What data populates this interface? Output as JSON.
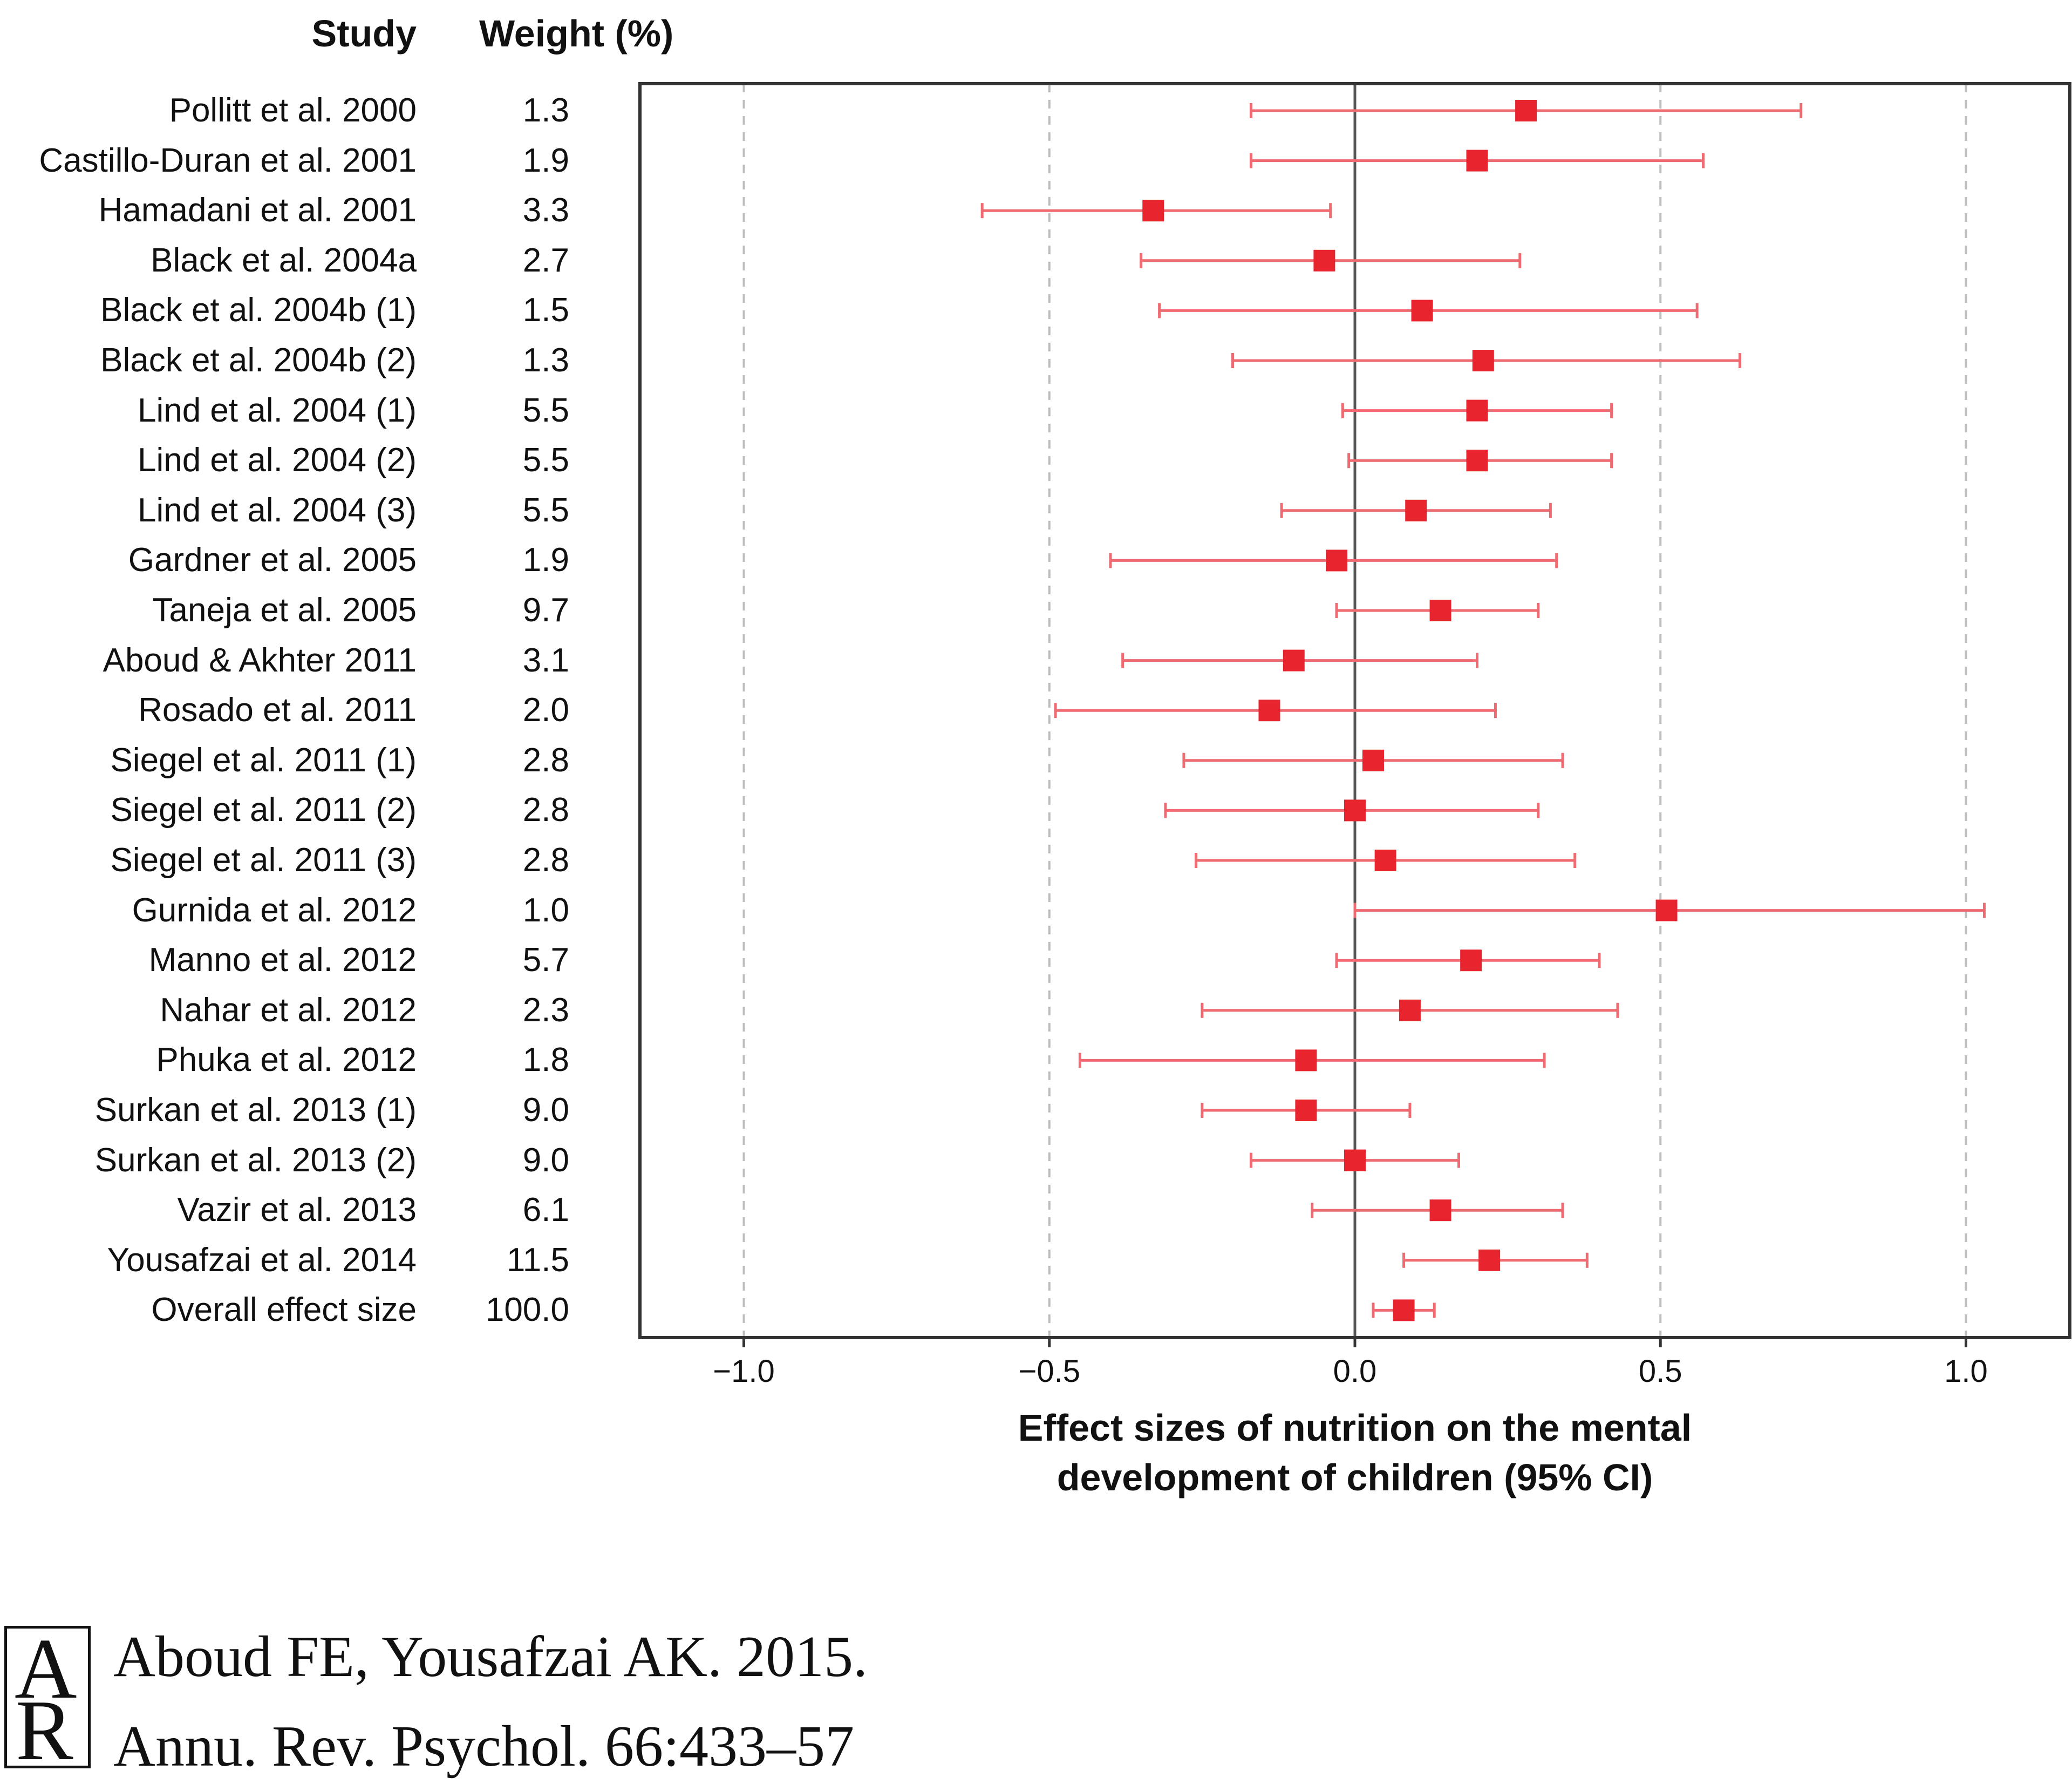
{
  "headers": {
    "study": "Study",
    "weight": "Weight (%)"
  },
  "chart_data": {
    "type": "forest",
    "xlabel_lines": [
      "Effect sizes of nutrition on the mental",
      "development of children (95% CI)"
    ],
    "xlim": [
      -1.17,
      1.17
    ],
    "xticks": [
      -1.0,
      -0.5,
      0.0,
      0.5,
      1.0
    ],
    "xtick_labels": [
      "−1.0",
      "−0.5",
      "0.0",
      "0.5",
      "1.0"
    ],
    "gridlines_at": [
      -1.0,
      -0.5,
      0.5,
      1.0
    ],
    "grid_style": "dashed",
    "reference_line": 0.0,
    "marker_color": "#e8242f",
    "whisker_color": "#ef6b72",
    "studies": [
      {
        "study": "Pollitt et al. 2000",
        "weight": "1.3",
        "effect": 0.28,
        "ci_low": -0.17,
        "ci_high": 0.73
      },
      {
        "study": "Castillo-Duran et al. 2001",
        "weight": "1.9",
        "effect": 0.2,
        "ci_low": -0.17,
        "ci_high": 0.57
      },
      {
        "study": "Hamadani et al. 2001",
        "weight": "3.3",
        "effect": -0.33,
        "ci_low": -0.61,
        "ci_high": -0.04
      },
      {
        "study": "Black et al. 2004a",
        "weight": "2.7",
        "effect": -0.05,
        "ci_low": -0.35,
        "ci_high": 0.27
      },
      {
        "study": "Black et al. 2004b (1)",
        "weight": "1.5",
        "effect": 0.11,
        "ci_low": -0.32,
        "ci_high": 0.56
      },
      {
        "study": "Black et al. 2004b (2)",
        "weight": "1.3",
        "effect": 0.21,
        "ci_low": -0.2,
        "ci_high": 0.63
      },
      {
        "study": "Lind et al. 2004 (1)",
        "weight": "5.5",
        "effect": 0.2,
        "ci_low": -0.02,
        "ci_high": 0.42
      },
      {
        "study": "Lind et al. 2004 (2)",
        "weight": "5.5",
        "effect": 0.2,
        "ci_low": -0.01,
        "ci_high": 0.42
      },
      {
        "study": "Lind et al. 2004 (3)",
        "weight": "5.5",
        "effect": 0.1,
        "ci_low": -0.12,
        "ci_high": 0.32
      },
      {
        "study": "Gardner et al. 2005",
        "weight": "1.9",
        "effect": -0.03,
        "ci_low": -0.4,
        "ci_high": 0.33
      },
      {
        "study": "Taneja et al. 2005",
        "weight": "9.7",
        "effect": 0.14,
        "ci_low": -0.03,
        "ci_high": 0.3
      },
      {
        "study": "Aboud & Akhter 2011",
        "weight": "3.1",
        "effect": -0.1,
        "ci_low": -0.38,
        "ci_high": 0.2
      },
      {
        "study": "Rosado et al. 2011",
        "weight": "2.0",
        "effect": -0.14,
        "ci_low": -0.49,
        "ci_high": 0.23
      },
      {
        "study": "Siegel et al. 2011 (1)",
        "weight": "2.8",
        "effect": 0.03,
        "ci_low": -0.28,
        "ci_high": 0.34
      },
      {
        "study": "Siegel et al. 2011 (2)",
        "weight": "2.8",
        "effect": 0.0,
        "ci_low": -0.31,
        "ci_high": 0.3
      },
      {
        "study": "Siegel et al. 2011 (3)",
        "weight": "2.8",
        "effect": 0.05,
        "ci_low": -0.26,
        "ci_high": 0.36
      },
      {
        "study": "Gurnida et al. 2012",
        "weight": "1.0",
        "effect": 0.51,
        "ci_low": 0.0,
        "ci_high": 1.03
      },
      {
        "study": "Manno et al. 2012",
        "weight": "5.7",
        "effect": 0.19,
        "ci_low": -0.03,
        "ci_high": 0.4
      },
      {
        "study": "Nahar et al. 2012",
        "weight": "2.3",
        "effect": 0.09,
        "ci_low": -0.25,
        "ci_high": 0.43
      },
      {
        "study": "Phuka et al. 2012",
        "weight": "1.8",
        "effect": -0.08,
        "ci_low": -0.45,
        "ci_high": 0.31
      },
      {
        "study": "Surkan et al. 2013 (1)",
        "weight": "9.0",
        "effect": -0.08,
        "ci_low": -0.25,
        "ci_high": 0.09
      },
      {
        "study": "Surkan et al. 2013 (2)",
        "weight": "9.0",
        "effect": 0.0,
        "ci_low": -0.17,
        "ci_high": 0.17
      },
      {
        "study": "Vazir et al. 2013",
        "weight": "6.1",
        "effect": 0.14,
        "ci_low": -0.07,
        "ci_high": 0.34
      },
      {
        "study": "Yousafzai et al. 2014",
        "weight": "11.5",
        "effect": 0.22,
        "ci_low": 0.08,
        "ci_high": 0.38
      },
      {
        "study": "Overall effect size",
        "weight": "100.0",
        "effect": 0.08,
        "ci_low": 0.03,
        "ci_high": 0.13
      }
    ]
  },
  "citation": {
    "logo_letters": "AR",
    "line1": "Aboud FE, Yousafzai AK. 2015.",
    "line2": "Annu. Rev. Psychol. 66:433–57"
  }
}
